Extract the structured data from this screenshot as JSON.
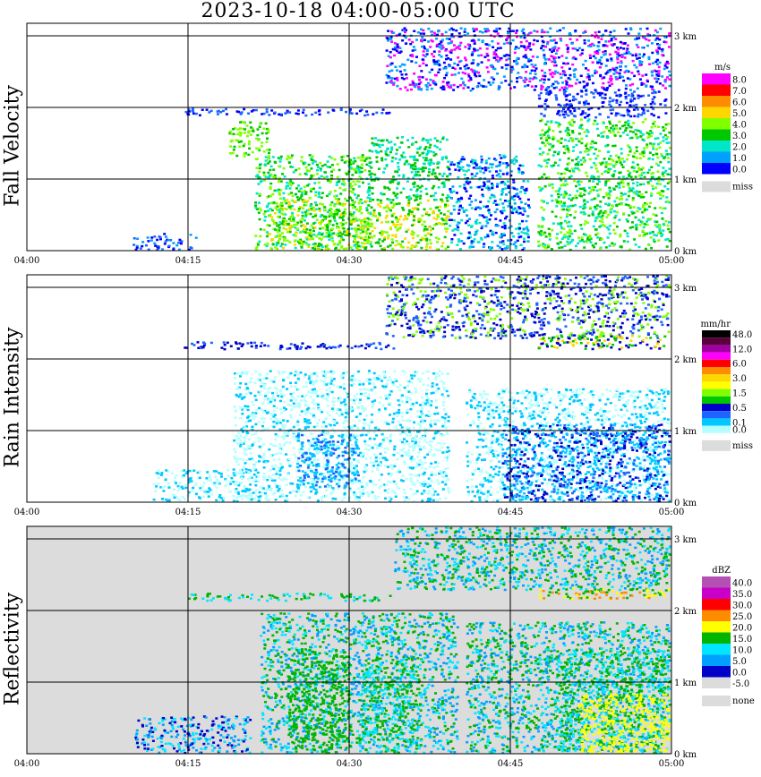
{
  "title": "2023-10-18   04:00-05:00 UTC",
  "x_ticks": [
    "04:00",
    "04:15",
    "04:30",
    "04:45",
    "05:00"
  ],
  "y_ticks": [
    "0 km",
    "1 km",
    "2 km",
    "3 km"
  ],
  "chart_data": [
    {
      "type": "heatmap",
      "title": "Fall Velocity",
      "xlabel": "",
      "ylabel": "Fall Velocity",
      "x_range": [
        "04:00",
        "05:00"
      ],
      "y_range_km": [
        0,
        3.2
      ],
      "grid": true,
      "colorbar": {
        "unit": "m/s",
        "labels": [
          "8.0",
          "7.0",
          "6.0",
          "5.0",
          "4.0",
          "3.0",
          "2.0",
          "1.0",
          "0.0"
        ],
        "colors": [
          "#ff00ff",
          "#ff0000",
          "#ff8c00",
          "#ffd700",
          "#80ff00",
          "#00c800",
          "#00e6c8",
          "#00a0ff",
          "#0000ff"
        ],
        "missing_label": "miss",
        "missing_color": "#dcdcdc"
      }
    },
    {
      "type": "heatmap",
      "title": "Rain Intensity",
      "xlabel": "",
      "ylabel": "Rain Intensity",
      "x_range": [
        "04:00",
        "05:00"
      ],
      "y_range_km": [
        0,
        3.2
      ],
      "grid": true,
      "colorbar": {
        "unit": "mm/hr",
        "labels": [
          "48.0",
          "",
          "12.0",
          "",
          "6.0",
          "",
          "3.0",
          "",
          "1.5",
          "",
          "0.5",
          "",
          "0.1",
          "0.0"
        ],
        "colors": [
          "#000000",
          "#5a003c",
          "#a000a0",
          "#ff00ff",
          "#ff0000",
          "#ff8c00",
          "#ffd700",
          "#ffff00",
          "#80ff00",
          "#00c800",
          "#0000c8",
          "#1e64ff",
          "#00c8ff",
          "#b4ffff"
        ],
        "missing_label": "miss",
        "missing_color": "#dcdcdc"
      }
    },
    {
      "type": "heatmap",
      "title": "Reflectivity",
      "xlabel": "",
      "ylabel": "Reflectivity",
      "x_range": [
        "04:00",
        "05:00"
      ],
      "y_range_km": [
        0,
        3.2
      ],
      "grid": true,
      "colorbar": {
        "unit": "dBZ",
        "labels": [
          "40.0",
          "35.0",
          "30.0",
          "25.0",
          "20.0",
          "15.0",
          "10.0",
          "5.0",
          "0.0",
          "-5.0"
        ],
        "colors": [
          "#b450b4",
          "#c800c8",
          "#ff0000",
          "#ff8c00",
          "#ffff00",
          "#00b400",
          "#00e6ff",
          "#00a0ff",
          "#0000c8",
          "#dcdcdc"
        ],
        "missing_label": "none",
        "missing_color": "#dcdcdc"
      }
    }
  ]
}
